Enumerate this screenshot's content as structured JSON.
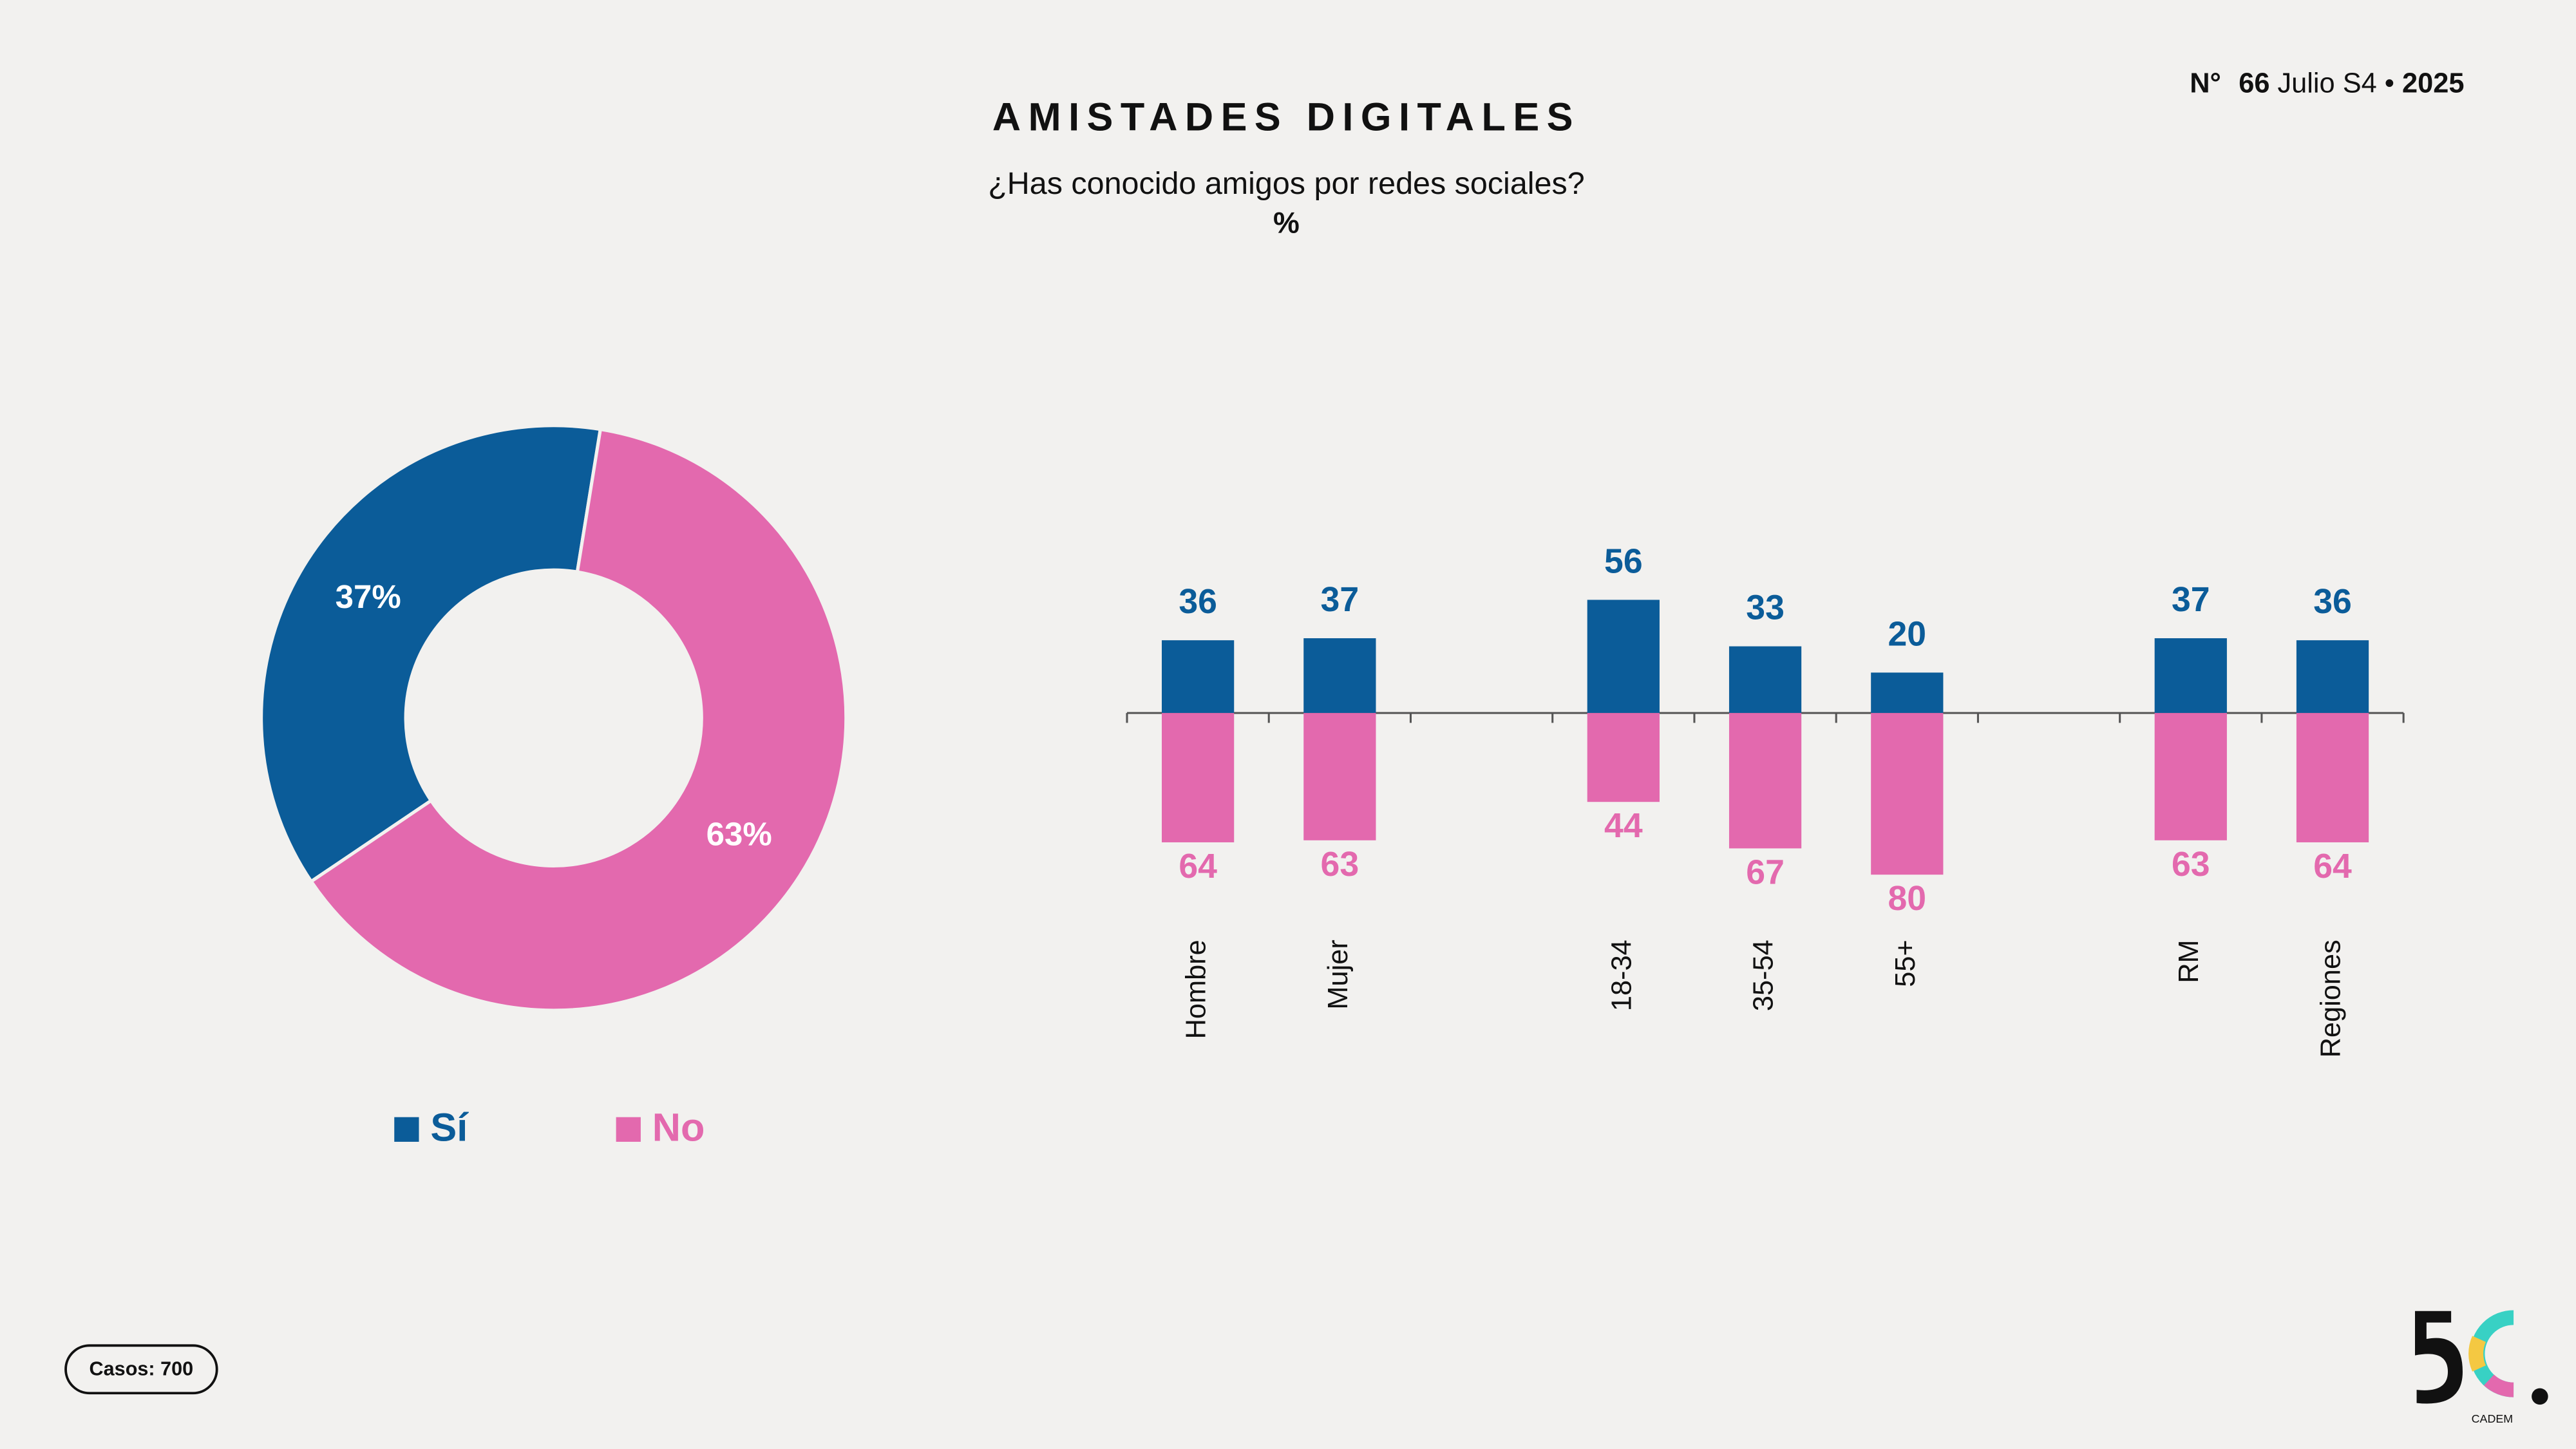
{
  "header": {
    "title": "AMISTADES DIGITALES",
    "subtitle": "¿Has conocido amigos por redes sociales?",
    "unit": "%",
    "issue": {
      "label": "N°",
      "number": "66",
      "period": "Julio S4",
      "separator": "•",
      "year": "2025"
    }
  },
  "footer": {
    "cases": "Casos: 700",
    "logo": "CADEM"
  },
  "chart_data": [
    {
      "type": "donut",
      "categories": [
        "Sí",
        "No"
      ],
      "values": [
        37,
        63
      ],
      "value_labels": [
        "37%",
        "63%"
      ],
      "colors": [
        "#0b5c99",
        "#e369ae"
      ],
      "legend": "bottom"
    },
    {
      "type": "diverging-bar",
      "categories": [
        "Hombre",
        "Mujer",
        null,
        "18-34",
        "35-54",
        "55+",
        null,
        "RM",
        "Regiones"
      ],
      "series": [
        {
          "name": "Sí",
          "color": "#0b5c99",
          "values": [
            36,
            37,
            null,
            56,
            33,
            20,
            null,
            37,
            36
          ]
        },
        {
          "name": "No",
          "color": "#e369ae",
          "values": [
            64,
            63,
            null,
            44,
            67,
            80,
            null,
            63,
            64
          ]
        }
      ]
    }
  ]
}
